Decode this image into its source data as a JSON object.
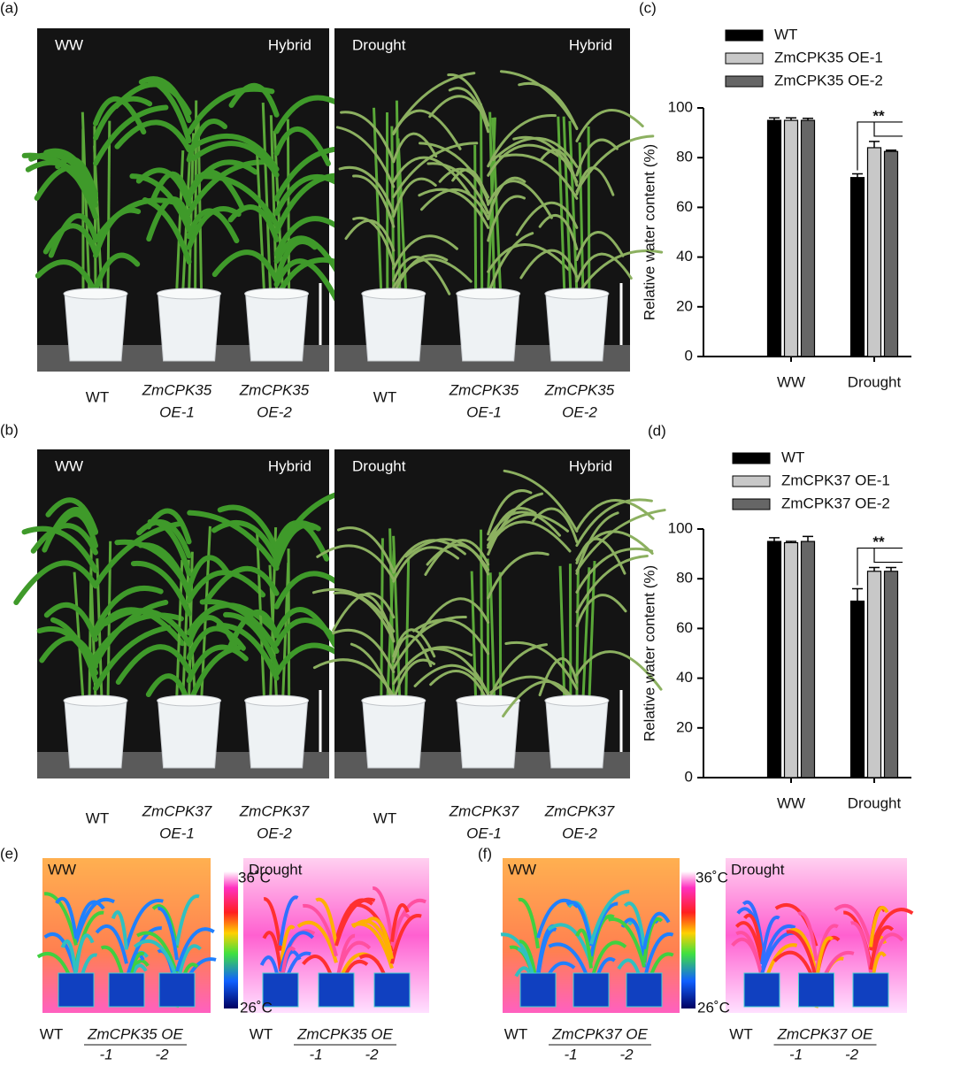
{
  "photo_panels": [
    {
      "label": "(a)",
      "tags": [
        [
          "WW",
          "Hybrid"
        ],
        [
          "Drought",
          "Hybrid"
        ]
      ],
      "captions": [
        [
          "WT"
        ],
        [
          "ZmCPK35",
          "OE-1"
        ],
        [
          "ZmCPK35",
          "OE-2"
        ],
        [
          "WT"
        ],
        [
          "ZmCPK35",
          "OE-1"
        ],
        [
          "ZmCPK35",
          "OE-2"
        ]
      ]
    },
    {
      "label": "(b)",
      "tags": [
        [
          "WW",
          "Hybrid"
        ],
        [
          "Drought",
          "Hybrid"
        ]
      ],
      "captions": [
        [
          "WT"
        ],
        [
          "ZmCPK37",
          "OE-1"
        ],
        [
          "ZmCPK37",
          "OE-2"
        ],
        [
          "WT"
        ],
        [
          "ZmCPK37",
          "OE-1"
        ],
        [
          "ZmCPK37",
          "OE-2"
        ]
      ]
    }
  ],
  "thermal_panels": [
    {
      "label": "(e)",
      "tags": [
        "WW",
        "Drought"
      ],
      "scale": [
        "36˚C",
        "26˚C"
      ],
      "captions": [
        [
          "WT",
          "ZmCPK35 OE",
          "-1",
          "-2"
        ],
        [
          "WT",
          "ZmCPK35 OE",
          "-1",
          "-2"
        ]
      ]
    },
    {
      "label": "(f)",
      "tags": [
        "WW",
        "Drought"
      ],
      "scale": [
        "36˚C",
        "26˚C"
      ],
      "captions": [
        [
          "WT",
          "ZmCPK37 OE",
          "-1",
          "-2"
        ],
        [
          "WT",
          "ZmCPK37 OE",
          "-1",
          "-2"
        ]
      ]
    }
  ],
  "chart_data": [
    {
      "type": "bar",
      "panel_label": "(c)",
      "ylabel": "Relative water content (%)",
      "categories": [
        "WW",
        "Drought"
      ],
      "annotation": "**",
      "series": [
        {
          "name": "WT",
          "color": "#000000",
          "values": [
            95,
            72
          ],
          "errors": [
            1,
            1.5
          ]
        },
        {
          "name": "ZmCPK35 OE-1",
          "color": "#c8c8c8",
          "values": [
            95,
            84
          ],
          "errors": [
            1,
            2.5
          ]
        },
        {
          "name": "ZmCPK35 OE-2",
          "color": "#666666",
          "values": [
            95,
            82.5
          ],
          "errors": [
            0.8,
            0.5
          ]
        }
      ],
      "ylim": [
        0,
        100
      ],
      "yticks": [
        0,
        20,
        40,
        60,
        80,
        100
      ]
    },
    {
      "type": "bar",
      "panel_label": "(d)",
      "ylabel": "Relative water content (%)",
      "categories": [
        "WW",
        "Drought"
      ],
      "annotation": "**",
      "series": [
        {
          "name": "WT",
          "color": "#000000",
          "values": [
            95,
            71
          ],
          "errors": [
            1.5,
            5
          ]
        },
        {
          "name": "ZmCPK37 OE-1",
          "color": "#c8c8c8",
          "values": [
            94.5,
            83
          ],
          "errors": [
            0.5,
            1.5
          ]
        },
        {
          "name": "ZmCPK37 OE-2",
          "color": "#666666",
          "values": [
            95,
            83
          ],
          "errors": [
            2,
            1.5
          ]
        }
      ],
      "ylim": [
        0,
        100
      ],
      "yticks": [
        0,
        20,
        40,
        60,
        80,
        100
      ]
    }
  ]
}
